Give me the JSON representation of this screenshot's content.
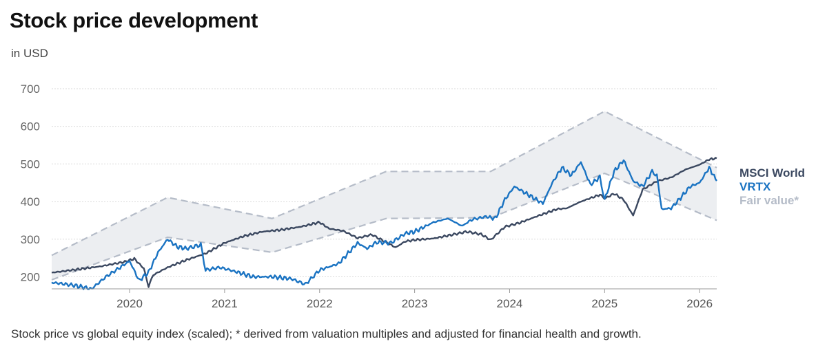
{
  "chart_data": {
    "type": "line",
    "title": "Stock price development",
    "subtitle": "in USD",
    "footnote": "Stock price vs global equity index (scaled); * derived from valuation multiples and adjusted for financial health and growth.",
    "xlim": [
      2019.18,
      2026.18
    ],
    "ylim": [
      168,
      720
    ],
    "x_ticks": [
      {
        "value": 2020,
        "label": "2020"
      },
      {
        "value": 2021,
        "label": "2021"
      },
      {
        "value": 2022,
        "label": "2022"
      },
      {
        "value": 2023,
        "label": "2023"
      },
      {
        "value": 2024,
        "label": "2024"
      },
      {
        "value": 2025,
        "label": "2025"
      },
      {
        "value": 2026,
        "label": "2026"
      }
    ],
    "y_ticks": [
      {
        "value": 200,
        "label": "200"
      },
      {
        "value": 300,
        "label": "300"
      },
      {
        "value": 400,
        "label": "400"
      },
      {
        "value": 500,
        "label": "500"
      },
      {
        "value": 600,
        "label": "600"
      },
      {
        "value": 700,
        "label": "700"
      }
    ],
    "grid": true,
    "legend_position": "right",
    "fair_value_band": {
      "name": "Fair value*",
      "color": "#b5bcc8",
      "fill": "#eceef1",
      "upper": [
        [
          2019.18,
          257
        ],
        [
          2020.4,
          411
        ],
        [
          2021.5,
          355
        ],
        [
          2022.7,
          480
        ],
        [
          2023.8,
          480
        ],
        [
          2025.0,
          640
        ],
        [
          2026.18,
          490
        ]
      ],
      "lower": [
        [
          2019.18,
          192
        ],
        [
          2020.4,
          305
        ],
        [
          2021.5,
          265
        ],
        [
          2022.7,
          355
        ],
        [
          2023.8,
          357
        ],
        [
          2025.0,
          475
        ],
        [
          2026.18,
          350
        ]
      ]
    },
    "series": [
      {
        "name": "MSCI World",
        "color": "#3b4860",
        "values": [
          [
            2019.18,
            211
          ],
          [
            2019.4,
            218
          ],
          [
            2019.7,
            228
          ],
          [
            2019.95,
            240
          ],
          [
            2020.05,
            248
          ],
          [
            2020.15,
            222
          ],
          [
            2020.2,
            175
          ],
          [
            2020.25,
            205
          ],
          [
            2020.4,
            225
          ],
          [
            2020.6,
            245
          ],
          [
            2020.8,
            262
          ],
          [
            2021.0,
            290
          ],
          [
            2021.2,
            308
          ],
          [
            2021.4,
            320
          ],
          [
            2021.6,
            325
          ],
          [
            2021.8,
            333
          ],
          [
            2022.0,
            345
          ],
          [
            2022.1,
            328
          ],
          [
            2022.25,
            322
          ],
          [
            2022.4,
            303
          ],
          [
            2022.55,
            312
          ],
          [
            2022.7,
            292
          ],
          [
            2022.8,
            278
          ],
          [
            2022.9,
            294
          ],
          [
            2023.0,
            298
          ],
          [
            2023.2,
            302
          ],
          [
            2023.4,
            312
          ],
          [
            2023.55,
            320
          ],
          [
            2023.7,
            313
          ],
          [
            2023.8,
            298
          ],
          [
            2023.95,
            333
          ],
          [
            2024.1,
            343
          ],
          [
            2024.3,
            362
          ],
          [
            2024.5,
            380
          ],
          [
            2024.6,
            382
          ],
          [
            2024.75,
            400
          ],
          [
            2024.95,
            418
          ],
          [
            2025.0,
            408
          ],
          [
            2025.1,
            421
          ],
          [
            2025.2,
            405
          ],
          [
            2025.3,
            363
          ],
          [
            2025.4,
            432
          ],
          [
            2025.55,
            454
          ],
          [
            2025.7,
            464
          ],
          [
            2025.85,
            485
          ],
          [
            2026.0,
            498
          ],
          [
            2026.1,
            512
          ],
          [
            2026.18,
            515
          ]
        ]
      },
      {
        "name": "VRTX",
        "color": "#1a73c2",
        "values": [
          [
            2019.18,
            185
          ],
          [
            2019.4,
            178
          ],
          [
            2019.6,
            168
          ],
          [
            2019.75,
            200
          ],
          [
            2019.9,
            225
          ],
          [
            2020.0,
            242
          ],
          [
            2020.1,
            190
          ],
          [
            2020.2,
            212
          ],
          [
            2020.3,
            265
          ],
          [
            2020.4,
            300
          ],
          [
            2020.5,
            280
          ],
          [
            2020.6,
            275
          ],
          [
            2020.75,
            285
          ],
          [
            2020.8,
            218
          ],
          [
            2020.95,
            225
          ],
          [
            2021.1,
            215
          ],
          [
            2021.3,
            200
          ],
          [
            2021.5,
            200
          ],
          [
            2021.7,
            195
          ],
          [
            2021.85,
            180
          ],
          [
            2022.0,
            218
          ],
          [
            2022.2,
            235
          ],
          [
            2022.4,
            290
          ],
          [
            2022.5,
            275
          ],
          [
            2022.6,
            292
          ],
          [
            2022.75,
            290
          ],
          [
            2022.9,
            315
          ],
          [
            2023.0,
            320
          ],
          [
            2023.2,
            345
          ],
          [
            2023.35,
            355
          ],
          [
            2023.5,
            335
          ],
          [
            2023.6,
            352
          ],
          [
            2023.75,
            360
          ],
          [
            2023.85,
            355
          ],
          [
            2023.95,
            405
          ],
          [
            2024.05,
            440
          ],
          [
            2024.15,
            425
          ],
          [
            2024.25,
            410
          ],
          [
            2024.35,
            395
          ],
          [
            2024.45,
            450
          ],
          [
            2024.55,
            490
          ],
          [
            2024.65,
            470
          ],
          [
            2024.75,
            505
          ],
          [
            2024.85,
            445
          ],
          [
            2024.95,
            465
          ],
          [
            2025.0,
            405
          ],
          [
            2025.1,
            480
          ],
          [
            2025.2,
            510
          ],
          [
            2025.3,
            455
          ],
          [
            2025.4,
            440
          ],
          [
            2025.5,
            480
          ],
          [
            2025.55,
            470
          ],
          [
            2025.6,
            380
          ],
          [
            2025.7,
            382
          ],
          [
            2025.8,
            410
          ],
          [
            2025.9,
            440
          ],
          [
            2026.0,
            450
          ],
          [
            2026.1,
            490
          ],
          [
            2026.18,
            455
          ]
        ]
      }
    ]
  }
}
